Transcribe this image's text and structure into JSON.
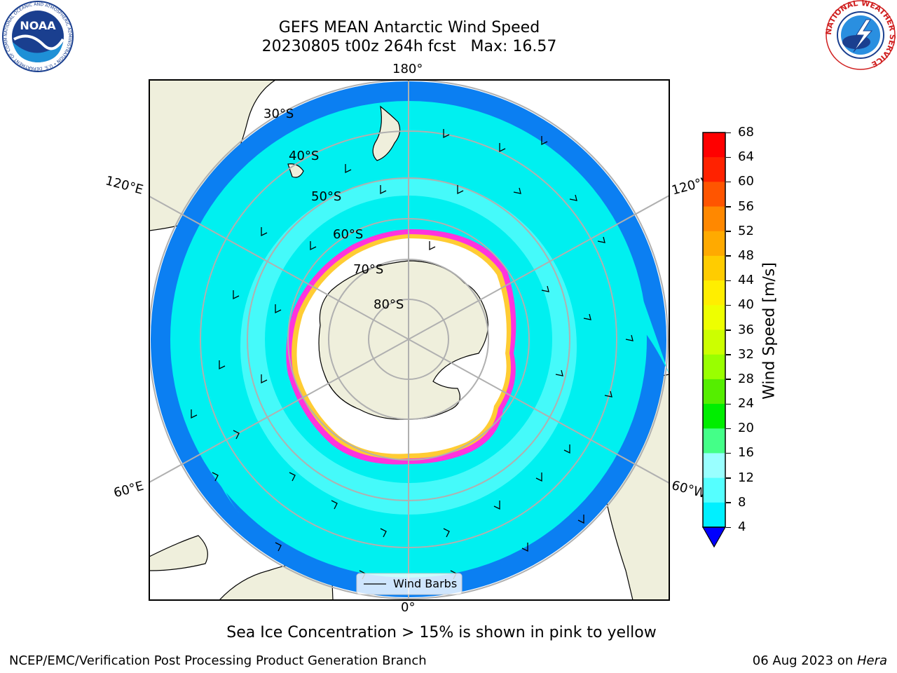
{
  "title": {
    "line1": "GEFS MEAN Antarctic Wind Speed",
    "line2": "20230805 t00z 264h fcst   Max: 16.57"
  },
  "map": {
    "projection": "south-polar-stereographic",
    "longitude_labels": {
      "top": "180°",
      "bottom": "0°",
      "upper_left": "120°E",
      "upper_right": "120°W",
      "lower_left": "60°E",
      "lower_right": "60°W"
    },
    "latitude_labels": [
      "30°S",
      "40°S",
      "50°S",
      "60°S",
      "70°S",
      "80°S"
    ],
    "legend_label": "Wind Barbs",
    "colors": {
      "land": "#efefdc",
      "ocean_4_8": "#0b7ff2",
      "ocean_8_12": "#00f0f0",
      "ocean_12_16": "#4dfbfb",
      "sea_ice": "#ffffff",
      "ice_edge": "#ff33dd",
      "ice_edge_inner": "#ffcc33",
      "grid": "#b0b0b0"
    }
  },
  "colorbar": {
    "title": "Wind Speed [m/s]",
    "ticks": [
      "68",
      "64",
      "60",
      "56",
      "52",
      "48",
      "44",
      "40",
      "36",
      "32",
      "28",
      "24",
      "20",
      "16",
      "12",
      "8",
      "4"
    ],
    "colors": [
      "#ff0000",
      "#ff2200",
      "#ff5500",
      "#ff8800",
      "#ffaa00",
      "#ffcc00",
      "#ffee00",
      "#eeff00",
      "#ccff00",
      "#99ff00",
      "#55ee00",
      "#00ee00",
      "#44ff88",
      "#99ffff",
      "#55ffff",
      "#00f0ff",
      "#0b7ff2"
    ],
    "under_color": "#0000ff"
  },
  "caption": "Sea Ice Concentration > 15% is shown in pink to yellow",
  "footer": {
    "left": "NCEP/EMC/Verification Post Processing Product Generation Branch",
    "right_date": "06 Aug 2023 on ",
    "right_host": "Hera"
  },
  "logos": {
    "noaa": "NOAA",
    "noaa_ring": "NATIONAL OCEANIC AND ATMOSPHERIC ADMINISTRATION • U.S. DEPARTMENT OF COMMERCE •",
    "nws_ring": "NATIONAL WEATHER SERVICE"
  }
}
